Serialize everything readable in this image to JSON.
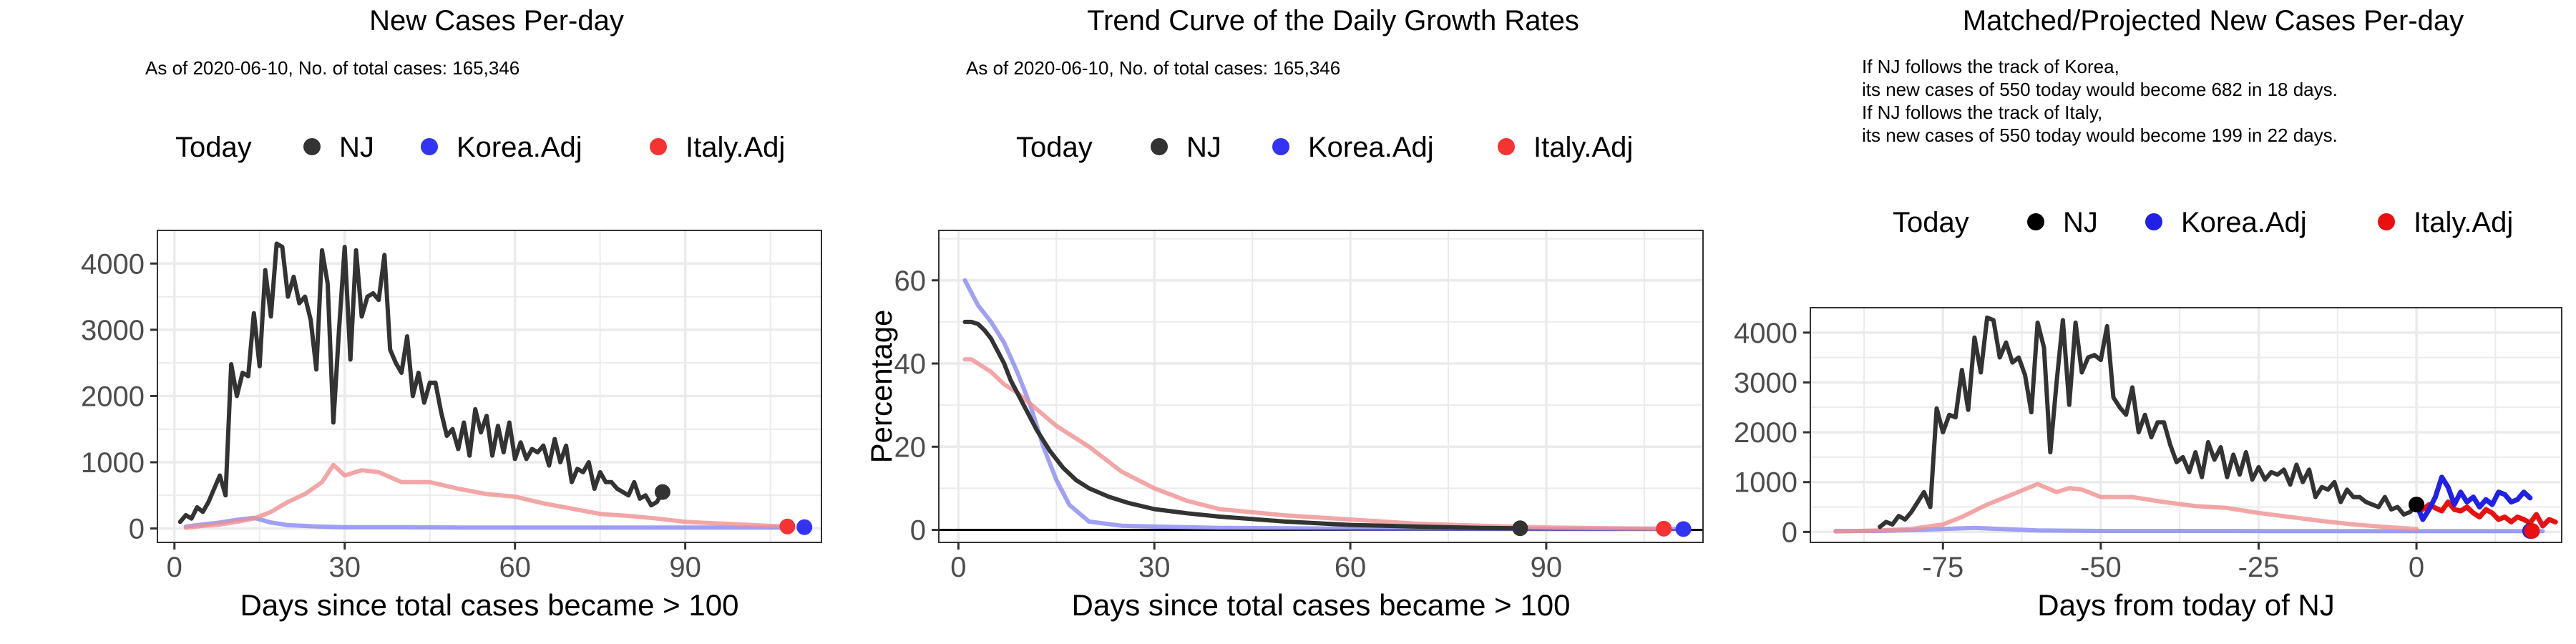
{
  "colors": {
    "nj": "#333333",
    "korea": "#8080f0",
    "italy": "#f09090",
    "korea_strong": "#2020e8",
    "italy_strong": "#e81010",
    "nj_strong": "#000000",
    "grid": "#ebebeb",
    "border": "#333333"
  },
  "legend": {
    "title": "Today",
    "labels": [
      "NJ",
      "Korea.Adj",
      "Italy.Adj"
    ]
  },
  "chart_data": [
    {
      "type": "line",
      "title": "New Cases Per-day",
      "subtitle": "As of 2020-06-10, No. of total cases: 165,346",
      "xlabel": "Days since total cases became > 100",
      "ylabel": "",
      "xlim": [
        -3,
        114
      ],
      "ylim": [
        -210,
        4500
      ],
      "xticks": [
        0,
        30,
        60,
        90
      ],
      "yticks": [
        0,
        1000,
        2000,
        3000,
        4000
      ],
      "series": [
        {
          "name": "Korea.Adj",
          "x": [
            2,
            5,
            8,
            11,
            14,
            17,
            20,
            25,
            30,
            40,
            50,
            60,
            70,
            80,
            90,
            100,
            108
          ],
          "y": [
            30,
            60,
            90,
            130,
            160,
            90,
            50,
            30,
            20,
            20,
            15,
            15,
            15,
            15,
            15,
            15,
            15
          ]
        },
        {
          "name": "Italy.Adj",
          "x": [
            2,
            5,
            8,
            11,
            14,
            17,
            20,
            23,
            26,
            28,
            30,
            33,
            36,
            40,
            45,
            50,
            55,
            60,
            65,
            70,
            75,
            80,
            85,
            90,
            95,
            100,
            105,
            108
          ],
          "y": [
            10,
            40,
            60,
            100,
            150,
            250,
            400,
            520,
            700,
            960,
            800,
            880,
            850,
            700,
            700,
            600,
            520,
            480,
            380,
            300,
            220,
            190,
            150,
            100,
            80,
            60,
            40,
            30
          ]
        },
        {
          "name": "NJ",
          "x": [
            1,
            2,
            3,
            4,
            5,
            6,
            7,
            8,
            9,
            10,
            11,
            12,
            13,
            14,
            15,
            16,
            17,
            18,
            19,
            20,
            21,
            22,
            23,
            24,
            25,
            26,
            27,
            28,
            29,
            30,
            31,
            32,
            33,
            34,
            35,
            36,
            37,
            38,
            39,
            40,
            41,
            42,
            43,
            44,
            45,
            46,
            47,
            48,
            49,
            50,
            51,
            52,
            53,
            54,
            55,
            56,
            57,
            58,
            59,
            60,
            61,
            62,
            63,
            64,
            65,
            66,
            67,
            68,
            69,
            70,
            71,
            72,
            73,
            74,
            75,
            76,
            77,
            78,
            79,
            80,
            81,
            82,
            83,
            84,
            85,
            86
          ],
          "y": [
            100,
            200,
            150,
            320,
            250,
            400,
            600,
            800,
            500,
            2480,
            2000,
            2350,
            2300,
            3250,
            2450,
            3900,
            3200,
            4300,
            4250,
            3500,
            3800,
            3400,
            3500,
            3150,
            2400,
            4200,
            3700,
            1600,
            3000,
            4250,
            2550,
            4200,
            3200,
            3500,
            3550,
            3450,
            4130,
            2700,
            2500,
            2350,
            2900,
            2000,
            2350,
            1900,
            2200,
            2200,
            1750,
            1400,
            1500,
            1200,
            1600,
            1100,
            1800,
            1450,
            1700,
            1100,
            1550,
            1150,
            1600,
            1050,
            1300,
            1050,
            1200,
            1150,
            1250,
            950,
            1350,
            1000,
            1250,
            700,
            900,
            850,
            1000,
            600,
            850,
            700,
            700,
            600,
            550,
            500,
            700,
            450,
            500,
            350,
            400,
            550
          ]
        }
      ],
      "today_points": {
        "NJ": [
          86,
          550
        ],
        "Italy.Adj": [
          108,
          30
        ],
        "Korea.Adj": [
          111,
          20
        ]
      }
    },
    {
      "type": "line",
      "title": "Trend Curve of the Daily Growth Rates",
      "subtitle": "As of 2020-06-10, No. of total cases: 165,346",
      "xlabel": "Days since total cases became > 100",
      "ylabel": "Percentage",
      "xlim": [
        -3,
        114
      ],
      "ylim": [
        -3,
        72
      ],
      "xticks": [
        0,
        30,
        60,
        90
      ],
      "yticks": [
        0,
        20,
        40,
        60
      ],
      "series": [
        {
          "name": "Korea.Adj",
          "x": [
            1,
            2,
            3,
            5,
            7,
            9,
            11,
            13,
            15,
            17,
            20,
            25,
            30,
            40,
            60,
            90,
            111
          ],
          "y": [
            60,
            57,
            54,
            50,
            45,
            38,
            30,
            20,
            12,
            6,
            2,
            1,
            0.8,
            0.5,
            0.3,
            0.2,
            0.2
          ]
        },
        {
          "name": "Italy.Adj",
          "x": [
            1,
            2,
            3,
            5,
            7,
            9,
            12,
            15,
            20,
            25,
            30,
            35,
            40,
            50,
            60,
            70,
            80,
            90,
            100,
            108
          ],
          "y": [
            41,
            41,
            40,
            38,
            35,
            33,
            29,
            25,
            20,
            14,
            10,
            7,
            5,
            3.5,
            2.5,
            1.5,
            1,
            0.6,
            0.4,
            0.3
          ]
        },
        {
          "name": "NJ",
          "x": [
            1,
            2,
            3,
            4,
            5,
            6,
            7,
            8,
            10,
            12,
            14,
            16,
            18,
            20,
            23,
            26,
            30,
            35,
            40,
            45,
            50,
            60,
            70,
            80,
            86
          ],
          "y": [
            50,
            50,
            49.5,
            48,
            46,
            43,
            40,
            36,
            30,
            24,
            19,
            15,
            12,
            10,
            8,
            6.5,
            5,
            4,
            3.2,
            2.6,
            2,
            1.2,
            0.8,
            0.5,
            0.4
          ]
        }
      ],
      "today_points": {
        "NJ": [
          86,
          0.4
        ],
        "Italy.Adj": [
          108,
          0.3
        ],
        "Korea.Adj": [
          111,
          0.2
        ]
      }
    },
    {
      "type": "line",
      "title": "Matched/Projected New Cases Per-day",
      "annotations": [
        "If NJ follows the track of Korea,",
        "its new cases of 550 today would become 682 in 18 days.",
        "If NJ follows the track of Italy,",
        "its new cases of 550 today would become 199 in 22 days."
      ],
      "xlabel": "Days from today of NJ",
      "ylabel": "",
      "xlim": [
        -96,
        23
      ],
      "ylim": [
        -210,
        4500
      ],
      "xticks": [
        -75,
        -50,
        -25,
        0
      ],
      "yticks": [
        0,
        1000,
        2000,
        3000,
        4000
      ],
      "series": [
        {
          "name": "Korea.Adj",
          "x": [
            -92,
            -85,
            -80,
            -75,
            -70,
            -60,
            -50,
            -40,
            -30,
            -20,
            -10,
            0,
            5,
            10,
            15,
            20
          ],
          "y": [
            20,
            20,
            40,
            60,
            80,
            30,
            20,
            20,
            20,
            15,
            15,
            15,
            15,
            15,
            15,
            15
          ]
        },
        {
          "name": "Italy.Adj",
          "x": [
            -92,
            -85,
            -80,
            -75,
            -72,
            -68,
            -65,
            -60,
            -57,
            -55,
            -53,
            -50,
            -45,
            -40,
            -35,
            -30,
            -25,
            -20,
            -15,
            -10,
            -5,
            0
          ],
          "y": [
            10,
            30,
            60,
            150,
            300,
            550,
            700,
            960,
            800,
            880,
            850,
            700,
            700,
            600,
            520,
            480,
            380,
            300,
            220,
            150,
            100,
            60
          ]
        },
        {
          "name": "NJ",
          "x": [
            -85,
            -84,
            -83,
            -82,
            -81,
            -80,
            -79,
            -78,
            -77,
            -76,
            -75,
            -74,
            -73,
            -72,
            -71,
            -70,
            -69,
            -68,
            -67,
            -66,
            -65,
            -64,
            -63,
            -62,
            -61,
            -60,
            -59,
            -58,
            -57,
            -56,
            -55,
            -54,
            -53,
            -52,
            -51,
            -50,
            -49,
            -48,
            -47,
            -46,
            -45,
            -44,
            -43,
            -42,
            -41,
            -40,
            -39,
            -38,
            -37,
            -36,
            -35,
            -34,
            -33,
            -32,
            -31,
            -30,
            -29,
            -28,
            -27,
            -26,
            -25,
            -24,
            -23,
            -22,
            -21,
            -20,
            -19,
            -18,
            -17,
            -16,
            -15,
            -14,
            -13,
            -12,
            -11,
            -10,
            -9,
            -8,
            -7,
            -6,
            -5,
            -4,
            -3,
            -2,
            -1,
            0
          ],
          "y": [
            100,
            200,
            150,
            320,
            250,
            400,
            600,
            800,
            500,
            2480,
            2000,
            2350,
            2300,
            3250,
            2450,
            3900,
            3200,
            4300,
            4250,
            3500,
            3800,
            3400,
            3500,
            3150,
            2400,
            4200,
            3700,
            1600,
            3000,
            4250,
            2550,
            4200,
            3200,
            3500,
            3550,
            3450,
            4130,
            2700,
            2500,
            2350,
            2900,
            2000,
            2350,
            1900,
            2200,
            2200,
            1750,
            1400,
            1500,
            1200,
            1600,
            1100,
            1800,
            1450,
            1700,
            1100,
            1550,
            1150,
            1600,
            1050,
            1300,
            1050,
            1200,
            1150,
            1250,
            950,
            1350,
            1000,
            1250,
            700,
            900,
            850,
            1000,
            600,
            850,
            700,
            700,
            600,
            550,
            500,
            700,
            450,
            500,
            350,
            400,
            550
          ]
        },
        {
          "name": "Korea.Adj projected",
          "x": [
            0,
            1,
            2,
            3,
            4,
            5,
            6,
            7,
            8,
            9,
            10,
            11,
            12,
            13,
            14,
            15,
            16,
            17,
            18
          ],
          "y": [
            550,
            250,
            450,
            700,
            1100,
            900,
            550,
            800,
            600,
            700,
            500,
            650,
            550,
            800,
            750,
            600,
            650,
            800,
            682
          ]
        },
        {
          "name": "Italy.Adj projected",
          "x": [
            0,
            1,
            2,
            3,
            4,
            5,
            6,
            7,
            8,
            9,
            10,
            11,
            12,
            13,
            14,
            15,
            16,
            17,
            18,
            19,
            20,
            21,
            22
          ],
          "y": [
            550,
            450,
            550,
            480,
            420,
            600,
            450,
            420,
            500,
            380,
            300,
            450,
            380,
            250,
            300,
            200,
            300,
            250,
            180,
            350,
            120,
            250,
            199
          ]
        }
      ],
      "today_points": {
        "NJ": [
          0,
          550
        ],
        "Korea.Adj": [
          18,
          20
        ],
        "Italy.Adj": [
          18.3,
          20
        ]
      }
    }
  ]
}
